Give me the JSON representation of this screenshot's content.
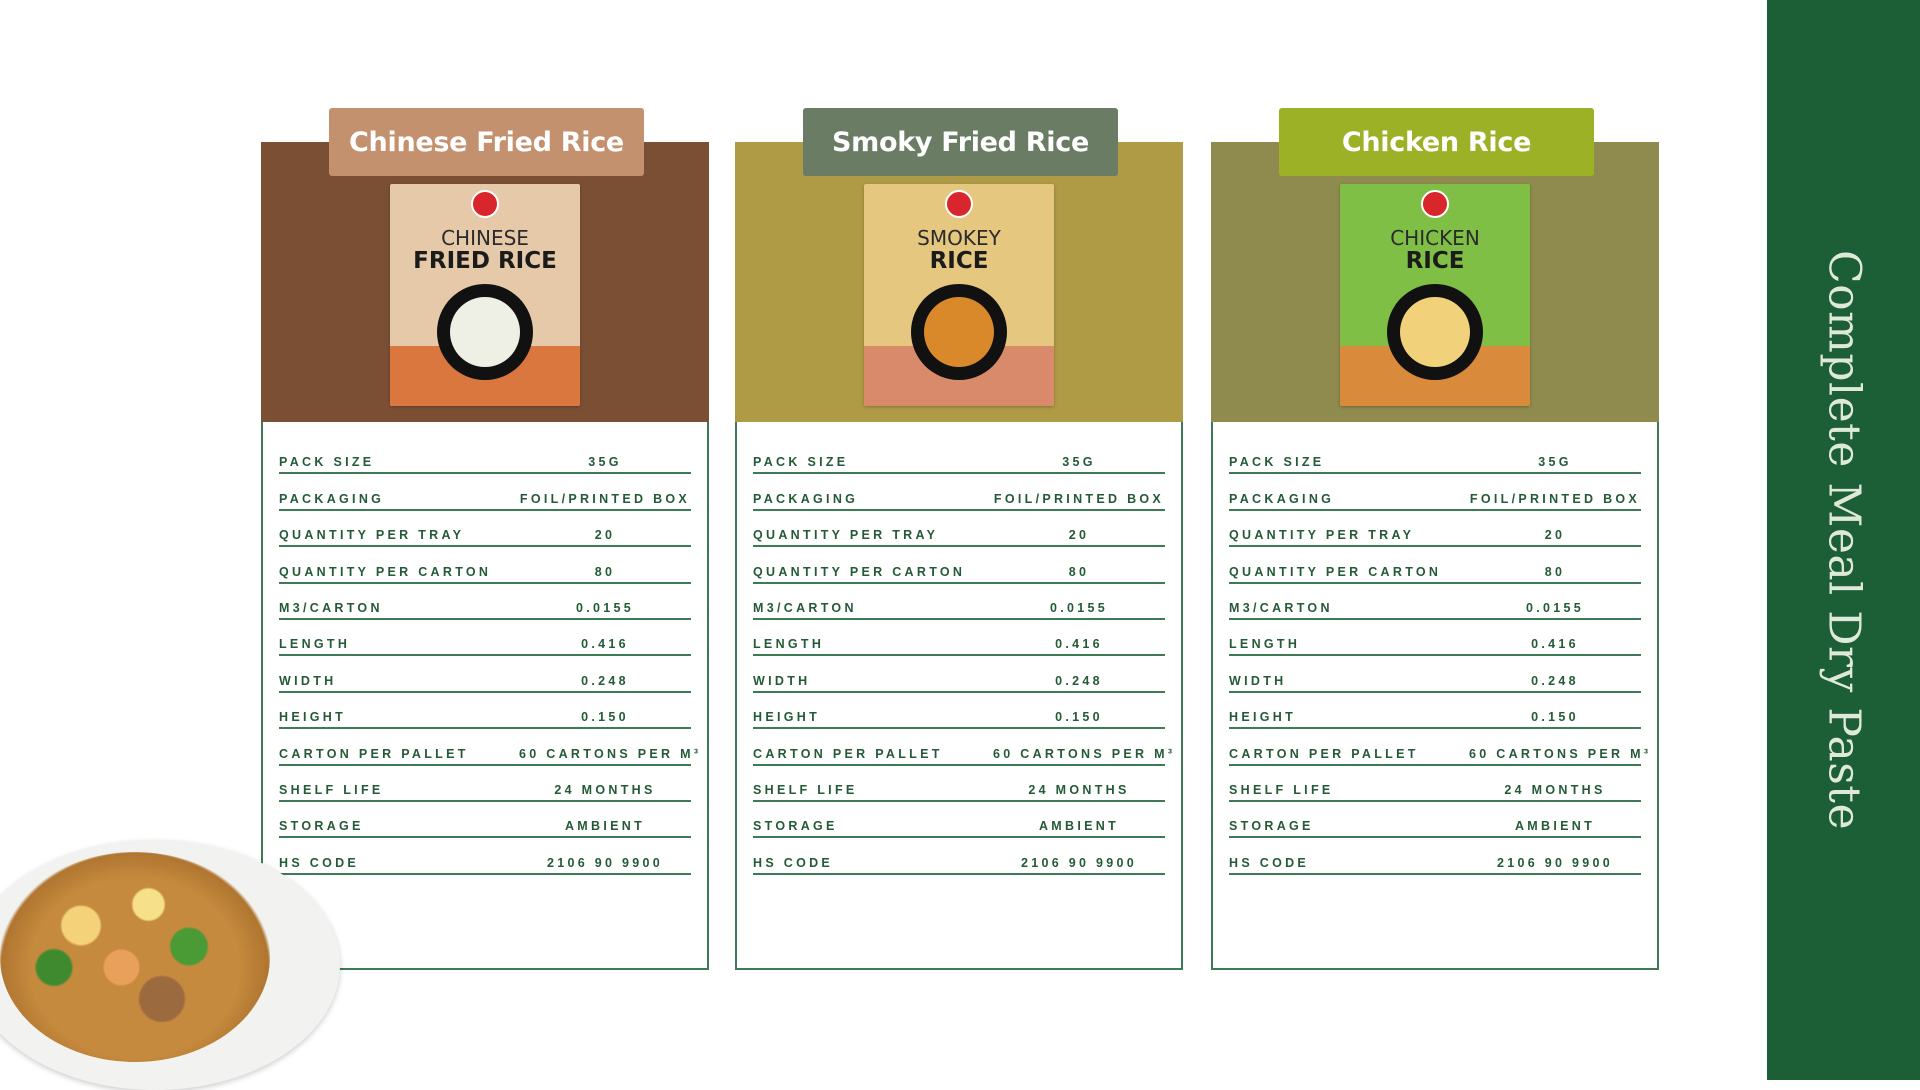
{
  "sidebar": {
    "title": "Complete Meal Dry Paste",
    "color": "#1c5e36"
  },
  "spec_labels": [
    "PACK SIZE",
    "PACKAGING",
    "QUANTITY PER TRAY",
    "QUANTITY PER CARTON",
    "M3/CARTON",
    "LENGTH",
    "WIDTH",
    "HEIGHT",
    "CARTON PER PALLET",
    "SHELF LIFE",
    "STORAGE",
    "HS CODE"
  ],
  "products": [
    {
      "label": "Chinese Fried Rice",
      "label_color": "#c4916e",
      "panel_color": "#7b4f34",
      "pack": {
        "line1": "CHINESE",
        "line2": "FRIED RICE",
        "color": "#e6c9a9",
        "band_color": "#d9773f",
        "food_color": "#eef0e6"
      },
      "specs": [
        "35G",
        "FOIL/PRINTED BOX",
        "20",
        "80",
        "0.0155",
        "0.416",
        "0.248",
        "0.150",
        "60 CARTONS PER M³",
        "24 MONTHS",
        "AMBIENT",
        "2106 90 9900"
      ]
    },
    {
      "label": "Smoky Fried Rice",
      "label_color": "#6a7d64",
      "panel_color": "#af9b45",
      "pack": {
        "line1": "SMOKEY",
        "line2": "RICE",
        "color": "#e5c77f",
        "band_color": "#d98a6a",
        "food_color": "#d9892a"
      },
      "specs": [
        "35G",
        "FOIL/PRINTED BOX",
        "20",
        "80",
        "0.0155",
        "0.416",
        "0.248",
        "0.150",
        "60 CARTONS PER M³",
        "24 MONTHS",
        "AMBIENT",
        "2106 90 9900"
      ]
    },
    {
      "label": "Chicken Rice",
      "label_color": "#9db127",
      "panel_color": "#8f8b4f",
      "pack": {
        "line1": "CHICKEN",
        "line2": "RICE",
        "color": "#7fbf45",
        "band_color": "#d98a3a",
        "food_color": "#f1d27a"
      },
      "specs": [
        "35G",
        "FOIL/PRINTED BOX",
        "20",
        "80",
        "0.0155",
        "0.416",
        "0.248",
        "0.150",
        "60 CARTONS PER M³",
        "24 MONTHS",
        "AMBIENT",
        "2106 90 9900"
      ]
    }
  ]
}
